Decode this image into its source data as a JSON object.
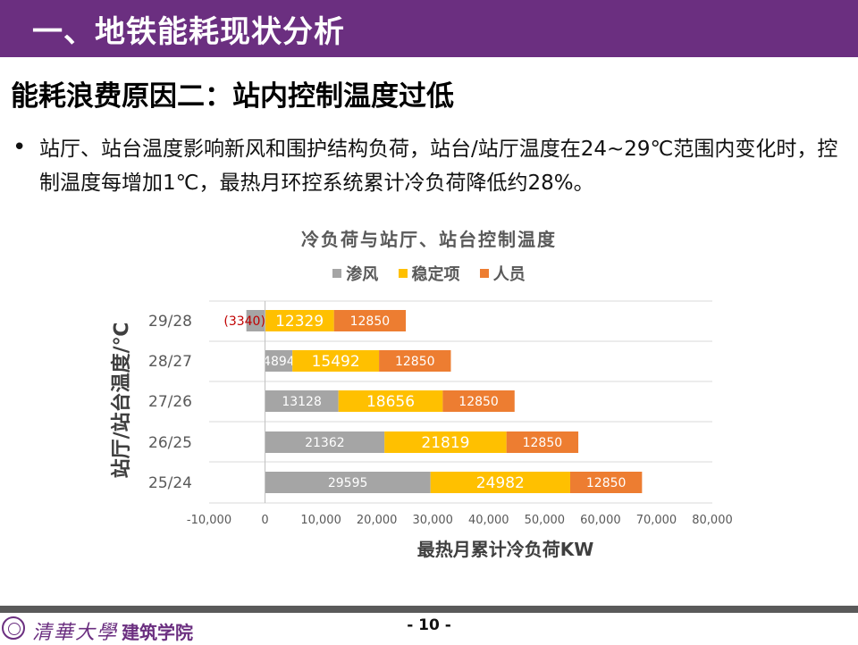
{
  "header": {
    "title": "一、地铁能耗现状分析"
  },
  "subtitle": "能耗浪费原因二：站内控制温度过低",
  "bullet": {
    "marker": "•",
    "text": "站厅、站台温度影响新风和围护结构负荷，站台/站厅温度在24~29℃范围内变化时，控制温度每增加1℃，最热月环控系统累计冷负荷降低约28%。"
  },
  "chart_data": {
    "type": "bar",
    "orientation": "horizontal",
    "stacked": true,
    "title": "冷负荷与站厅、站台控制温度",
    "xlabel": "最热月累计冷负荷KW",
    "ylabel": "站厅/站台温度/℃",
    "categories": [
      "29/28",
      "28/27",
      "27/26",
      "26/25",
      "25/24"
    ],
    "series": [
      {
        "name": "渗风",
        "color": "#a5a5a5",
        "values": [
          -3340,
          4894,
          13128,
          21362,
          29595
        ],
        "labels": [
          "(3340)",
          "4894",
          "13128",
          "21362",
          "29595"
        ]
      },
      {
        "name": "稳定项",
        "color": "#ffc000",
        "values": [
          12329,
          15492,
          18656,
          21819,
          24982
        ],
        "labels": [
          "12329",
          "15492",
          "18656",
          "21819",
          "24982"
        ]
      },
      {
        "name": "人员",
        "color": "#ed7d31",
        "values": [
          12850,
          12850,
          12850,
          12850,
          12850
        ],
        "labels": [
          "12850",
          "12850",
          "12850",
          "12850",
          "12850"
        ]
      }
    ],
    "xlim": [
      -10000,
      80000
    ],
    "xticks": [
      -10000,
      0,
      10000,
      20000,
      30000,
      40000,
      50000,
      60000,
      70000,
      80000
    ],
    "xtick_labels": [
      "-10,000",
      "0",
      "10,000",
      "20,000",
      "30,000",
      "40,000",
      "50,000",
      "60,000",
      "70,000",
      "80,000"
    ],
    "grid": "horizontal",
    "legend_position": "top",
    "negative_label_color": "#c00000"
  },
  "footer": {
    "logo_text": "清華大學",
    "school": "建筑学院",
    "page": "- 10 -"
  }
}
